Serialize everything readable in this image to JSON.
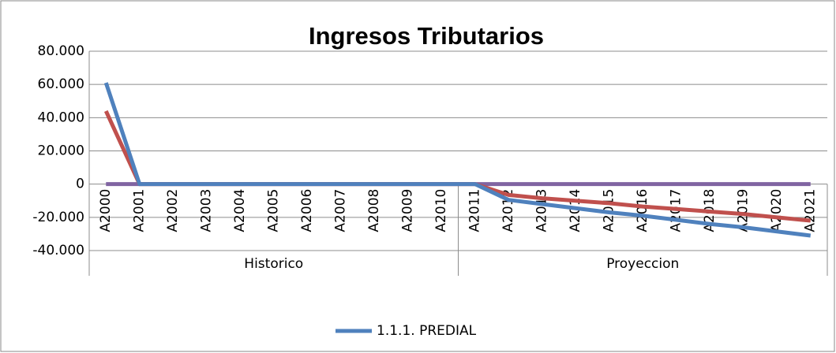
{
  "chart_data": {
    "type": "line",
    "title": "Ingresos Tributarios",
    "categories": [
      "A2000",
      "A2001",
      "A2002",
      "A2003",
      "A2004",
      "A2005",
      "A2006",
      "A2007",
      "A2008",
      "A2009",
      "A2010",
      "A2011",
      "A2012",
      "A2013",
      "A2014",
      "A2015",
      "A2016",
      "A2017",
      "A2018",
      "A2019",
      "A2020",
      "A2021"
    ],
    "group_labels": [
      "Historico",
      "Proyeccion"
    ],
    "series": [
      {
        "name": "1.1.1. PREDIAL",
        "color": "#4f81bd",
        "values": [
          61000,
          0,
          0,
          0,
          0,
          0,
          0,
          0,
          0,
          0,
          0,
          0,
          -9500,
          -12000,
          -14500,
          -17000,
          -19000,
          -21500,
          -24000,
          -26000,
          -28500,
          -31000
        ]
      },
      {
        "color": "#c0504d",
        "values": [
          44000,
          0,
          0,
          0,
          0,
          0,
          0,
          0,
          0,
          0,
          0,
          0,
          -6500,
          -8500,
          -10000,
          -11500,
          -13500,
          -15000,
          -16500,
          -18000,
          -20000,
          -22000
        ]
      },
      {
        "color": "#8064a2",
        "values": [
          0,
          0,
          0,
          0,
          0,
          0,
          0,
          0,
          0,
          0,
          0,
          0,
          0,
          0,
          0,
          0,
          0,
          0,
          0,
          0,
          0,
          0
        ]
      }
    ],
    "ylim": [
      -40000,
      80000
    ],
    "yticks": [
      {
        "value": -40000,
        "label": "-40.000"
      },
      {
        "value": -20000,
        "label": "-20.000"
      },
      0,
      {
        "value": 20000,
        "label": "20.000"
      },
      {
        "value": 40000,
        "label": "40.000"
      },
      {
        "value": 60000,
        "label": "60.000"
      },
      {
        "value": 80000,
        "label": "80.000"
      }
    ],
    "grid": true
  }
}
